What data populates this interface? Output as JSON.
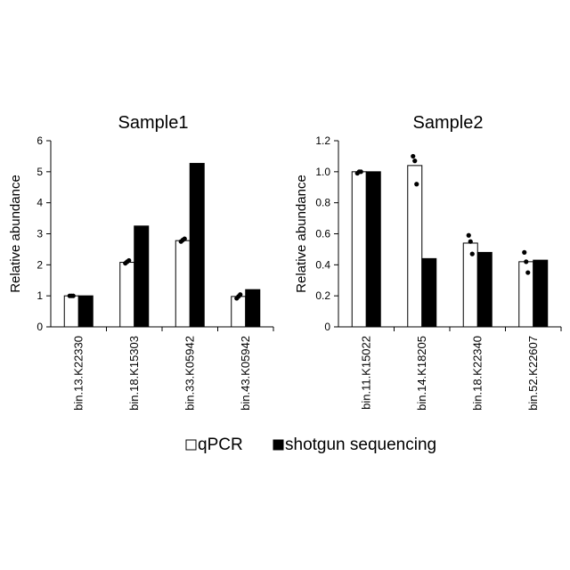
{
  "chart_data": [
    {
      "type": "bar",
      "title": "Sample1",
      "ylabel": "Relative abundance",
      "xlabel": "",
      "ylim": [
        0,
        6
      ],
      "yticks": [
        "0",
        "1",
        "2",
        "3",
        "4",
        "5",
        "6"
      ],
      "categories": [
        "bin.13.K22330",
        "bin.18.K15303",
        "bin.33.K05942",
        "bin.43.K05942"
      ],
      "series": [
        {
          "name": "qPCR",
          "values": [
            1.0,
            2.08,
            2.78,
            0.98
          ],
          "replicates": [
            [
              1.0,
              1.0,
              1.0
            ],
            [
              2.05,
              2.1,
              2.14
            ],
            [
              2.75,
              2.8,
              2.84
            ],
            [
              0.92,
              0.98,
              1.04
            ]
          ]
        },
        {
          "name": "shotgun sequencing",
          "values": [
            1.0,
            3.25,
            5.27,
            1.2
          ]
        }
      ],
      "grid": false
    },
    {
      "type": "bar",
      "title": "Sample2",
      "ylabel": "Relative abundance",
      "xlabel": "",
      "ylim": [
        0,
        1.2
      ],
      "yticks": [
        "0",
        "0.2",
        "0.4",
        "0.6",
        "0.8",
        "1.0",
        "1.2"
      ],
      "categories": [
        "bin.11.K15022",
        "bin.14.K18205",
        "bin.18.K22340",
        "bin.52.K22607"
      ],
      "series": [
        {
          "name": "qPCR",
          "values": [
            1.0,
            1.04,
            0.54,
            0.42
          ],
          "replicates": [
            [
              0.99,
              1.0,
              1.0
            ],
            [
              1.1,
              1.07,
              0.92
            ],
            [
              0.59,
              0.55,
              0.47
            ],
            [
              0.48,
              0.42,
              0.35
            ]
          ]
        },
        {
          "name": "shotgun sequencing",
          "values": [
            1.0,
            0.44,
            0.48,
            0.43
          ]
        }
      ],
      "grid": false
    }
  ],
  "legend": {
    "position": "bottom-center",
    "items": [
      {
        "label": "qPCR",
        "fill": "#ffffff"
      },
      {
        "label": "shotgun sequencing",
        "fill": "#000000"
      }
    ]
  },
  "colors": {
    "qpcr_fill": "#ffffff",
    "shotgun_fill": "#000000",
    "axis": "#000000",
    "dot": "#000000"
  }
}
